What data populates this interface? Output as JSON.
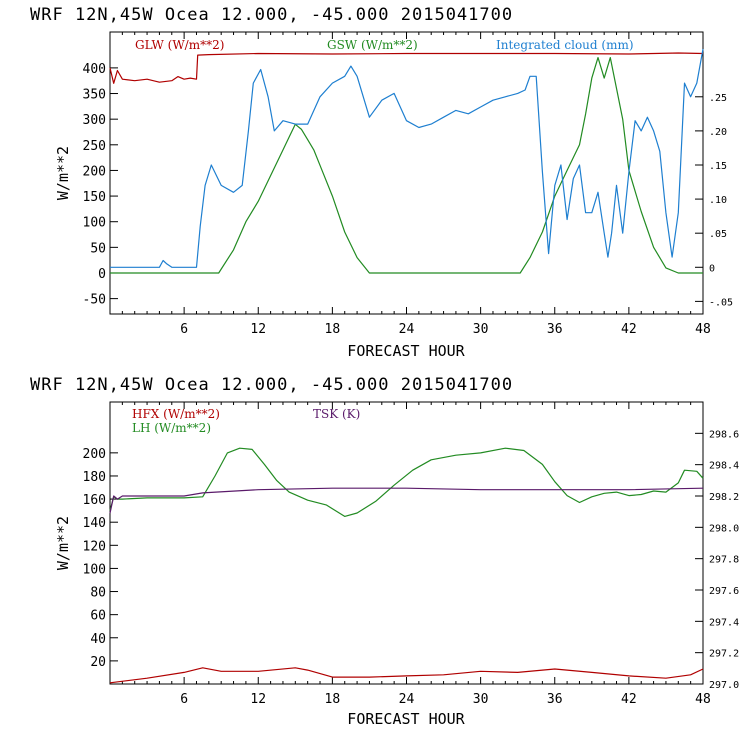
{
  "chart_data": [
    {
      "type": "line",
      "header": "WRF   12N,45W Ocea  12.000, -45.000  2015041700",
      "xlabel": "FORECAST HOUR",
      "ylabel": "W/m**2",
      "xlim": [
        0,
        48
      ],
      "ylim": [
        -80,
        470
      ],
      "xticks": [
        "6",
        "12",
        "18",
        "24",
        "30",
        "36",
        "42",
        "48"
      ],
      "xtick_values": [
        6,
        12,
        18,
        24,
        30,
        36,
        42,
        48
      ],
      "yticks": [
        "-50",
        "0",
        "50",
        "100",
        "150",
        "200",
        "250",
        "300",
        "350",
        "400"
      ],
      "ytick_values": [
        -50,
        0,
        50,
        100,
        150,
        200,
        250,
        300,
        350,
        400
      ],
      "y2lim": [
        -0.0685,
        0.345
      ],
      "y2ticks": [
        "-.05",
        "0",
        ".05",
        ".10",
        ".15",
        ".20",
        ".25"
      ],
      "y2tick_values": [
        -0.05,
        0,
        0.05,
        0.1,
        0.15,
        0.2,
        0.25
      ],
      "grid": false,
      "legend": "top",
      "series": [
        {
          "name": "GLW (W/m**2)",
          "color": "#b00000",
          "axis": "left",
          "x": [
            0,
            0.3,
            0.6,
            1,
            2,
            3,
            4,
            5,
            5.5,
            6,
            6.5,
            7,
            7.1,
            8,
            12,
            18,
            24,
            30,
            36,
            42,
            46,
            48
          ],
          "y": [
            400,
            370,
            395,
            378,
            375,
            378,
            372,
            375,
            383,
            378,
            380,
            378,
            425,
            426,
            428,
            427,
            428,
            428,
            428,
            427,
            429,
            428
          ]
        },
        {
          "name": "GSW (W/m**2)",
          "color": "#228b22",
          "axis": "left",
          "x": [
            0,
            8.8,
            10,
            11,
            12,
            13,
            14,
            14.5,
            15,
            15.5,
            16,
            16.5,
            17,
            18,
            19,
            20,
            21,
            22,
            30,
            33.2,
            34,
            35,
            36,
            37,
            38,
            38.5,
            39,
            39.5,
            40,
            40.5,
            41,
            41.5,
            42,
            43,
            44,
            45,
            46,
            48
          ],
          "y": [
            0,
            0,
            45,
            100,
            140,
            190,
            240,
            265,
            290,
            280,
            260,
            240,
            210,
            150,
            80,
            30,
            0,
            0,
            0,
            0,
            30,
            80,
            150,
            200,
            250,
            310,
            380,
            420,
            380,
            420,
            360,
            300,
            200,
            120,
            50,
            10,
            0,
            0
          ]
        },
        {
          "name": "Integrated cloud (mm)",
          "color": "#1e7fd0",
          "axis": "right",
          "x": [
            0,
            4,
            4.3,
            4.6,
            5,
            7,
            7.3,
            7.7,
            8.2,
            9,
            10,
            10.7,
            11.2,
            11.6,
            12.2,
            12.8,
            13.3,
            14,
            15,
            16,
            17,
            18,
            19,
            19.5,
            20,
            21,
            22,
            23,
            24,
            25,
            26,
            27,
            28,
            29,
            30,
            31,
            32,
            33,
            33.6,
            34,
            34.5,
            35,
            35.5,
            36,
            36.5,
            37,
            37.5,
            38,
            38.5,
            39,
            39.5,
            40,
            40.3,
            40.6,
            41,
            41.5,
            42,
            42.5,
            43,
            43.5,
            44,
            44.5,
            45,
            45.5,
            46,
            46.5,
            47,
            47.5,
            48
          ],
          "y": [
            0,
            0,
            0.01,
            0.005,
            0,
            0,
            0.06,
            0.12,
            0.15,
            0.12,
            0.11,
            0.12,
            0.2,
            0.27,
            0.29,
            0.25,
            0.2,
            0.215,
            0.21,
            0.21,
            0.25,
            0.27,
            0.28,
            0.295,
            0.28,
            0.22,
            0.245,
            0.255,
            0.215,
            0.205,
            0.21,
            0.22,
            0.23,
            0.225,
            0.235,
            0.245,
            0.25,
            0.255,
            0.26,
            0.28,
            0.28,
            0.14,
            0.02,
            0.12,
            0.15,
            0.07,
            0.13,
            0.15,
            0.08,
            0.08,
            0.11,
            0.05,
            0.015,
            0.05,
            0.12,
            0.05,
            0.14,
            0.215,
            0.2,
            0.22,
            0.2,
            0.17,
            0.08,
            0.015,
            0.08,
            0.27,
            0.25,
            0.27,
            0.32
          ]
        }
      ]
    },
    {
      "type": "line",
      "header": "WRF   12N,45W Ocea  12.000, -45.000  2015041700",
      "xlabel": "FORECAST HOUR",
      "ylabel": "W/m**2",
      "xlim": [
        0,
        48
      ],
      "ylim": [
        0,
        244
      ],
      "xticks": [
        "6",
        "12",
        "18",
        "24",
        "30",
        "36",
        "42",
        "48"
      ],
      "xtick_values": [
        6,
        12,
        18,
        24,
        30,
        36,
        42,
        48
      ],
      "yticks": [
        "20",
        "40",
        "60",
        "80",
        "100",
        "120",
        "140",
        "160",
        "180",
        "200"
      ],
      "ytick_values": [
        20,
        40,
        60,
        80,
        100,
        120,
        140,
        160,
        180,
        200
      ],
      "y2lim": [
        297.0,
        298.8
      ],
      "y2ticks": [
        "297.0",
        "297.2",
        "297.4",
        "297.6",
        "297.8",
        "298.0",
        "298.2",
        "298.4",
        "298.6"
      ],
      "y2tick_values": [
        297.0,
        297.2,
        297.4,
        297.6,
        297.8,
        298.0,
        298.2,
        298.4,
        298.6
      ],
      "grid": false,
      "legend": "top",
      "series": [
        {
          "name": "HFX (W/m**2)",
          "color": "#b00000",
          "axis": "left",
          "x": [
            0,
            3,
            6,
            7.5,
            9,
            12,
            15,
            16,
            18,
            21,
            24,
            27,
            30,
            33,
            36,
            39,
            42,
            45,
            47,
            48
          ],
          "y": [
            1,
            5,
            10,
            14,
            11,
            11,
            14,
            12,
            6,
            6,
            7,
            8,
            11,
            10,
            13,
            10,
            7,
            5,
            8,
            13
          ]
        },
        {
          "name": "LH (W/m**2)",
          "color": "#228b22",
          "axis": "left",
          "x": [
            0,
            0.3,
            0.6,
            1,
            3,
            6,
            7.5,
            8.5,
            9.5,
            10.5,
            11.5,
            12.5,
            13.5,
            14.5,
            16,
            17.5,
            19,
            20,
            21.5,
            23,
            24.5,
            26,
            28,
            30,
            32,
            33.5,
            35,
            36,
            37,
            38,
            39,
            40,
            41,
            42,
            43,
            44,
            45,
            46,
            46.5,
            47.5,
            48
          ],
          "y": [
            150,
            162,
            160,
            160,
            161,
            161,
            162,
            180,
            200,
            204,
            203,
            190,
            176,
            166,
            159,
            155,
            145,
            148,
            158,
            172,
            185,
            194,
            198,
            200,
            204,
            202,
            190,
            175,
            163,
            157,
            162,
            165,
            166,
            163,
            164,
            167,
            166,
            174,
            185,
            184,
            178
          ]
        },
        {
          "name": "TSK (K)",
          "color": "#5a1a6a",
          "axis": "right",
          "x": [
            0,
            0.3,
            0.6,
            1,
            6,
            7.5,
            12,
            18,
            24,
            30,
            36,
            42,
            48
          ],
          "y": [
            298.09,
            298.2,
            298.18,
            298.2,
            298.2,
            298.22,
            298.24,
            298.25,
            298.25,
            298.24,
            298.24,
            298.24,
            298.25
          ]
        }
      ]
    }
  ]
}
